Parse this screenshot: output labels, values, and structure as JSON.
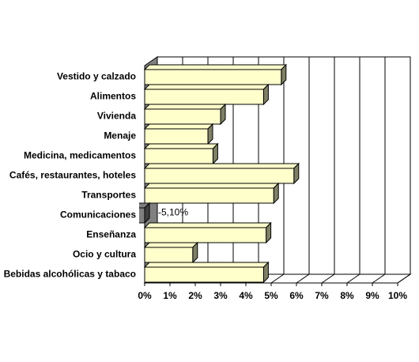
{
  "chart_data": {
    "type": "bar3d_horizontal",
    "categories": [
      "Vestido y calzado",
      "Alimentos",
      "Vivienda",
      "Menaje",
      "Medicina, medicamentos",
      "Cafés, restaurantes, hoteles",
      "Transportes",
      "Comunicaciones",
      "Enseñanza",
      "Ocio y cultura",
      "Bebidas alcohólicas y tabaco"
    ],
    "values": [
      5.4,
      4.7,
      3.0,
      2.5,
      2.7,
      5.9,
      5.1,
      -5.1,
      4.8,
      1.9,
      4.7
    ],
    "value_labels": [
      null,
      null,
      null,
      null,
      null,
      null,
      null,
      "-5,10%",
      null,
      null,
      null
    ],
    "color": "#ffffcc",
    "xlim": [
      0,
      10
    ],
    "xticks": [
      {
        "value": 0,
        "label": "0%"
      },
      {
        "value": 1,
        "label": "1%"
      },
      {
        "value": 2,
        "label": "2%"
      },
      {
        "value": 3,
        "label": "3%"
      },
      {
        "value": 4,
        "label": "4%"
      },
      {
        "value": 5,
        "label": "5%"
      },
      {
        "value": 6,
        "label": "6%"
      },
      {
        "value": 7,
        "label": "7%"
      },
      {
        "value": 8,
        "label": "8%"
      },
      {
        "value": 9,
        "label": "9%"
      },
      {
        "value": 10,
        "label": "10%"
      }
    ],
    "grid": true
  }
}
